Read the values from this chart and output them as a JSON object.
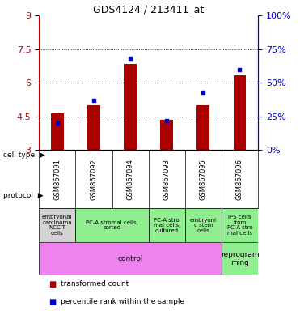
{
  "title": "GDS4124 / 213411_at",
  "samples": [
    "GSM867091",
    "GSM867092",
    "GSM867094",
    "GSM867093",
    "GSM867095",
    "GSM867096"
  ],
  "red_values": [
    4.65,
    5.0,
    6.85,
    4.35,
    5.0,
    6.35
  ],
  "blue_values_pct": [
    20,
    37,
    68,
    22,
    43,
    60
  ],
  "ylim_left": [
    3,
    9
  ],
  "ylim_right": [
    0,
    100
  ],
  "yticks_left": [
    3,
    4.5,
    6,
    7.5,
    9
  ],
  "yticks_right": [
    0,
    25,
    50,
    75,
    100
  ],
  "cell_configs": [
    [
      0,
      1,
      "embryonal\ncarcinoma\nNCCIT\ncells",
      "#d3d3d3"
    ],
    [
      1,
      3,
      "PC-A stromal cells,\nsorted",
      "#90ee90"
    ],
    [
      3,
      4,
      "PC-A stro\nmal cells,\ncultured",
      "#90ee90"
    ],
    [
      4,
      5,
      "embryoni\nc stem\ncells",
      "#90ee90"
    ],
    [
      5,
      6,
      "IPS cells\nfrom\nPC-A stro\nmal cells",
      "#90ee90"
    ]
  ],
  "proto_configs": [
    [
      0,
      5,
      "control",
      "#ee82ee"
    ],
    [
      5,
      6,
      "reprogram\nming",
      "#90ee90"
    ]
  ],
  "bar_color": "#aa0000",
  "dot_color": "#0000cc",
  "bg_color": "#ffffff",
  "left_axis_color": "#cc0000",
  "right_axis_color": "#0000cc",
  "sample_bg": "#c8c8c8"
}
